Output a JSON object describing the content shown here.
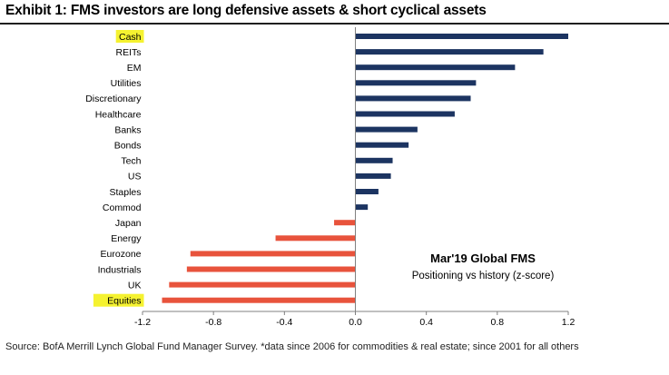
{
  "header": {
    "title": "Exhibit 1: FMS investors are long defensive assets & short cyclical assets"
  },
  "footer": {
    "source": "Source:  BofA Merrill Lynch Global Fund Manager Survey. *data since 2006 for commodities & real estate; since 2001  for all others"
  },
  "colors": {
    "positive": "#1c3461",
    "negative": "#e8533c",
    "highlight": "#f5f230",
    "axis": "#808080"
  },
  "chart_data": {
    "type": "bar",
    "orientation": "horizontal",
    "categories": [
      "Cash",
      "REITs",
      "EM",
      "Utilities",
      "Discretionary",
      "Healthcare",
      "Banks",
      "Bonds",
      "Tech",
      "US",
      "Staples",
      "Commod",
      "Japan",
      "Energy",
      "Eurozone",
      "Industrials",
      "UK",
      "Equities"
    ],
    "values": [
      1.2,
      1.06,
      0.9,
      0.68,
      0.65,
      0.56,
      0.35,
      0.3,
      0.21,
      0.2,
      0.13,
      0.07,
      -0.12,
      -0.45,
      -0.93,
      -0.95,
      -1.05,
      -1.09
    ],
    "highlighted": [
      "Cash",
      "Equities"
    ],
    "xlim": [
      -1.2,
      1.2
    ],
    "xticks": [
      -1.2,
      -0.8,
      -0.4,
      0.0,
      0.4,
      0.8,
      1.2
    ],
    "xtick_labels": [
      "-1.2",
      "-0.8",
      "-0.4",
      "0.0",
      "0.4",
      "0.8",
      "1.2"
    ],
    "annotation_title": "Mar'19 Global FMS",
    "annotation_subtitle": "Positioning vs history (z-score)"
  }
}
